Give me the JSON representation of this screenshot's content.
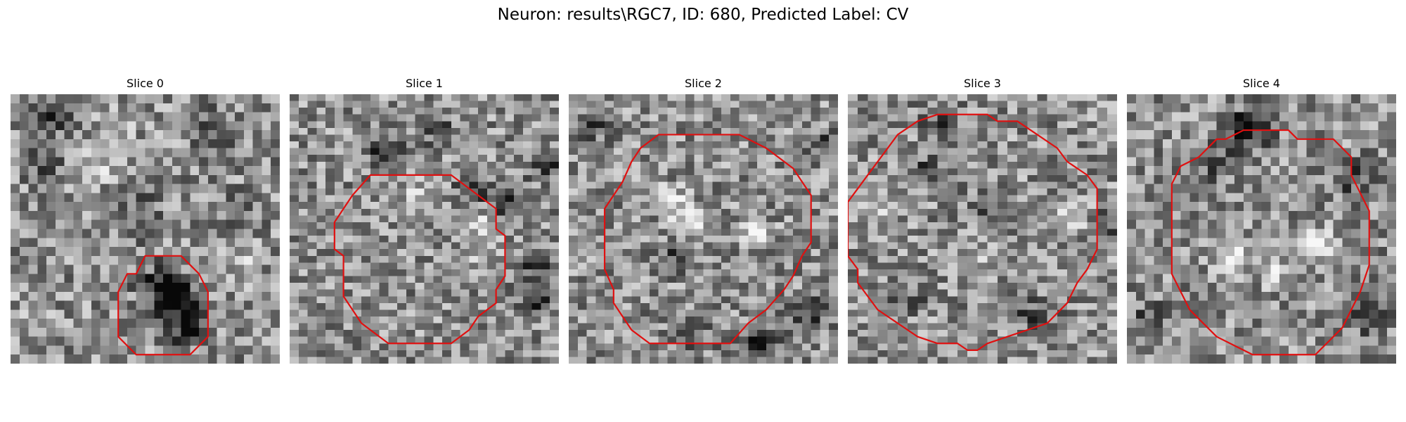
{
  "figure": {
    "title": "Neuron: results\\RGC7, ID: 680, Predicted Label: CV"
  },
  "colors": {
    "contour": "#e01010",
    "background": "#ffffff"
  },
  "panels": [
    {
      "title": "Slice 0",
      "contour": [
        [
          17,
          18
        ],
        [
          19,
          18
        ],
        [
          20,
          19
        ],
        [
          21,
          20
        ],
        [
          22,
          22
        ],
        [
          22,
          27
        ],
        [
          20,
          29
        ],
        [
          18,
          29
        ],
        [
          16,
          29
        ],
        [
          14,
          29
        ],
        [
          13,
          28
        ],
        [
          12,
          27
        ],
        [
          12,
          22
        ],
        [
          13,
          20
        ],
        [
          14,
          20
        ],
        [
          15,
          18
        ]
      ],
      "dark_spots": [
        [
          19,
          25,
          0.9
        ],
        [
          18,
          22,
          0.7
        ],
        [
          16,
          21,
          0.6
        ],
        [
          3,
          7,
          0.4
        ],
        [
          4,
          2,
          0.4
        ],
        [
          22,
          3,
          0.5
        ],
        [
          25,
          13,
          0.4
        ],
        [
          14,
          13,
          0.4
        ]
      ],
      "light_spots": [
        [
          11,
          3,
          0.5
        ],
        [
          9,
          7,
          0.5
        ],
        [
          25,
          18,
          0.4
        ],
        [
          2,
          24,
          0.4
        ]
      ]
    },
    {
      "title": "Slice 1",
      "contour": [
        [
          9,
          12
        ],
        [
          18,
          12
        ],
        [
          23,
          17
        ],
        [
          23,
          20
        ],
        [
          24,
          21
        ],
        [
          24,
          27
        ],
        [
          23,
          29
        ],
        [
          23,
          31
        ],
        [
          21,
          33
        ],
        [
          20,
          35
        ],
        [
          18,
          37
        ],
        [
          13,
          37
        ],
        [
          11,
          37
        ],
        [
          9,
          35
        ],
        [
          8,
          34
        ],
        [
          7,
          32
        ],
        [
          6,
          30
        ],
        [
          6,
          24
        ],
        [
          5,
          23
        ],
        [
          5,
          19
        ],
        [
          6,
          17
        ],
        [
          7,
          15
        ]
      ],
      "dark_spots": [
        [
          28,
          10,
          0.5
        ],
        [
          27,
          25,
          0.5
        ],
        [
          27,
          30,
          0.6
        ],
        [
          24,
          16,
          0.5
        ],
        [
          20,
          14,
          0.4
        ],
        [
          10,
          8,
          0.5
        ],
        [
          16,
          5,
          0.4
        ]
      ],
      "light_spots": [
        [
          21,
          22,
          0.5
        ],
        [
          14,
          14,
          0.4
        ],
        [
          20,
          18,
          0.4
        ]
      ]
    },
    {
      "title": "Slice 2",
      "contour": [
        [
          10,
          6
        ],
        [
          19,
          6
        ],
        [
          22,
          8
        ],
        [
          23,
          9
        ],
        [
          25,
          11
        ],
        [
          26,
          13
        ],
        [
          27,
          15
        ],
        [
          27,
          22
        ],
        [
          26,
          24
        ],
        [
          25,
          27
        ],
        [
          24,
          29
        ],
        [
          22,
          32
        ],
        [
          20,
          34
        ],
        [
          18,
          37
        ],
        [
          12,
          37
        ],
        [
          9,
          37
        ],
        [
          7,
          35
        ],
        [
          6,
          33
        ],
        [
          5,
          31
        ],
        [
          5,
          29
        ],
        [
          4,
          26
        ],
        [
          4,
          19
        ],
        [
          4,
          17
        ],
        [
          5,
          15
        ],
        [
          6,
          13
        ],
        [
          7,
          10
        ],
        [
          8,
          8
        ]
      ],
      "dark_spots": [
        [
          21,
          36,
          0.6
        ],
        [
          26,
          32,
          0.6
        ],
        [
          11,
          24,
          0.4
        ],
        [
          2,
          4,
          0.4
        ],
        [
          28,
          7,
          0.4
        ],
        [
          13,
          36,
          0.4
        ]
      ],
      "light_spots": [
        [
          13,
          18,
          0.7
        ],
        [
          11,
          15,
          0.5
        ],
        [
          20,
          20,
          0.4
        ]
      ]
    },
    {
      "title": "Slice 3",
      "contour": [
        [
          13,
          3
        ],
        [
          14,
          3
        ],
        [
          15,
          4
        ],
        [
          17,
          4
        ],
        [
          19,
          6
        ],
        [
          21,
          8
        ],
        [
          22,
          10
        ],
        [
          24,
          12
        ],
        [
          25,
          14
        ],
        [
          25,
          23
        ],
        [
          24,
          26
        ],
        [
          23,
          28
        ],
        [
          22,
          31
        ],
        [
          20,
          34
        ],
        [
          18,
          35
        ],
        [
          16,
          36
        ],
        [
          14,
          37
        ],
        [
          13,
          38
        ],
        [
          12,
          38
        ],
        [
          11,
          37
        ],
        [
          9,
          37
        ],
        [
          7,
          36
        ],
        [
          6,
          35
        ],
        [
          4,
          33
        ],
        [
          3,
          32
        ],
        [
          2,
          30
        ],
        [
          1,
          28
        ],
        [
          1,
          26
        ],
        [
          0,
          24
        ],
        [
          0,
          19
        ],
        [
          0,
          16
        ],
        [
          1,
          14
        ],
        [
          2,
          12
        ],
        [
          3,
          10
        ],
        [
          4,
          8
        ],
        [
          5,
          6
        ],
        [
          7,
          4
        ],
        [
          9,
          3
        ],
        [
          11,
          3
        ]
      ],
      "dark_spots": [
        [
          9,
          4,
          0.4
        ],
        [
          7,
          11,
          0.4
        ],
        [
          14,
          16,
          0.4
        ],
        [
          26,
          19,
          0.4
        ],
        [
          5,
          30,
          0.4
        ],
        [
          18,
          32,
          0.4
        ]
      ],
      "light_spots": [
        [
          22,
          18,
          0.5
        ],
        [
          3,
          17,
          0.4
        ],
        [
          12,
          24,
          0.4
        ],
        [
          7,
          35,
          0.4
        ]
      ]
    },
    {
      "title": "Slice 4",
      "contour": [
        [
          14,
          4
        ],
        [
          18,
          4
        ],
        [
          19,
          5
        ],
        [
          20,
          5
        ],
        [
          23,
          5
        ],
        [
          25,
          7
        ],
        [
          25,
          9
        ],
        [
          26,
          11
        ],
        [
          27,
          13
        ],
        [
          27,
          19
        ],
        [
          26,
          22
        ],
        [
          25,
          24
        ],
        [
          24,
          26
        ],
        [
          22,
          28
        ],
        [
          21,
          29
        ],
        [
          14,
          29
        ],
        [
          12,
          28
        ],
        [
          10,
          27
        ],
        [
          8,
          25
        ],
        [
          7,
          24
        ],
        [
          6,
          22
        ],
        [
          5,
          20
        ],
        [
          5,
          17
        ],
        [
          5,
          15
        ],
        [
          5,
          10
        ],
        [
          6,
          8
        ],
        [
          8,
          7
        ],
        [
          10,
          5
        ],
        [
          11,
          5
        ],
        [
          13,
          4
        ]
      ],
      "dark_spots": [
        [
          14,
          3,
          0.6
        ],
        [
          12,
          4,
          0.5
        ],
        [
          9,
          7,
          0.4
        ],
        [
          25,
          9,
          0.4
        ],
        [
          26,
          24,
          0.4
        ],
        [
          2,
          25,
          0.4
        ]
      ],
      "light_spots": [
        [
          11,
          17,
          0.5
        ],
        [
          16,
          19,
          0.4
        ],
        [
          21,
          16,
          0.5
        ]
      ]
    }
  ]
}
